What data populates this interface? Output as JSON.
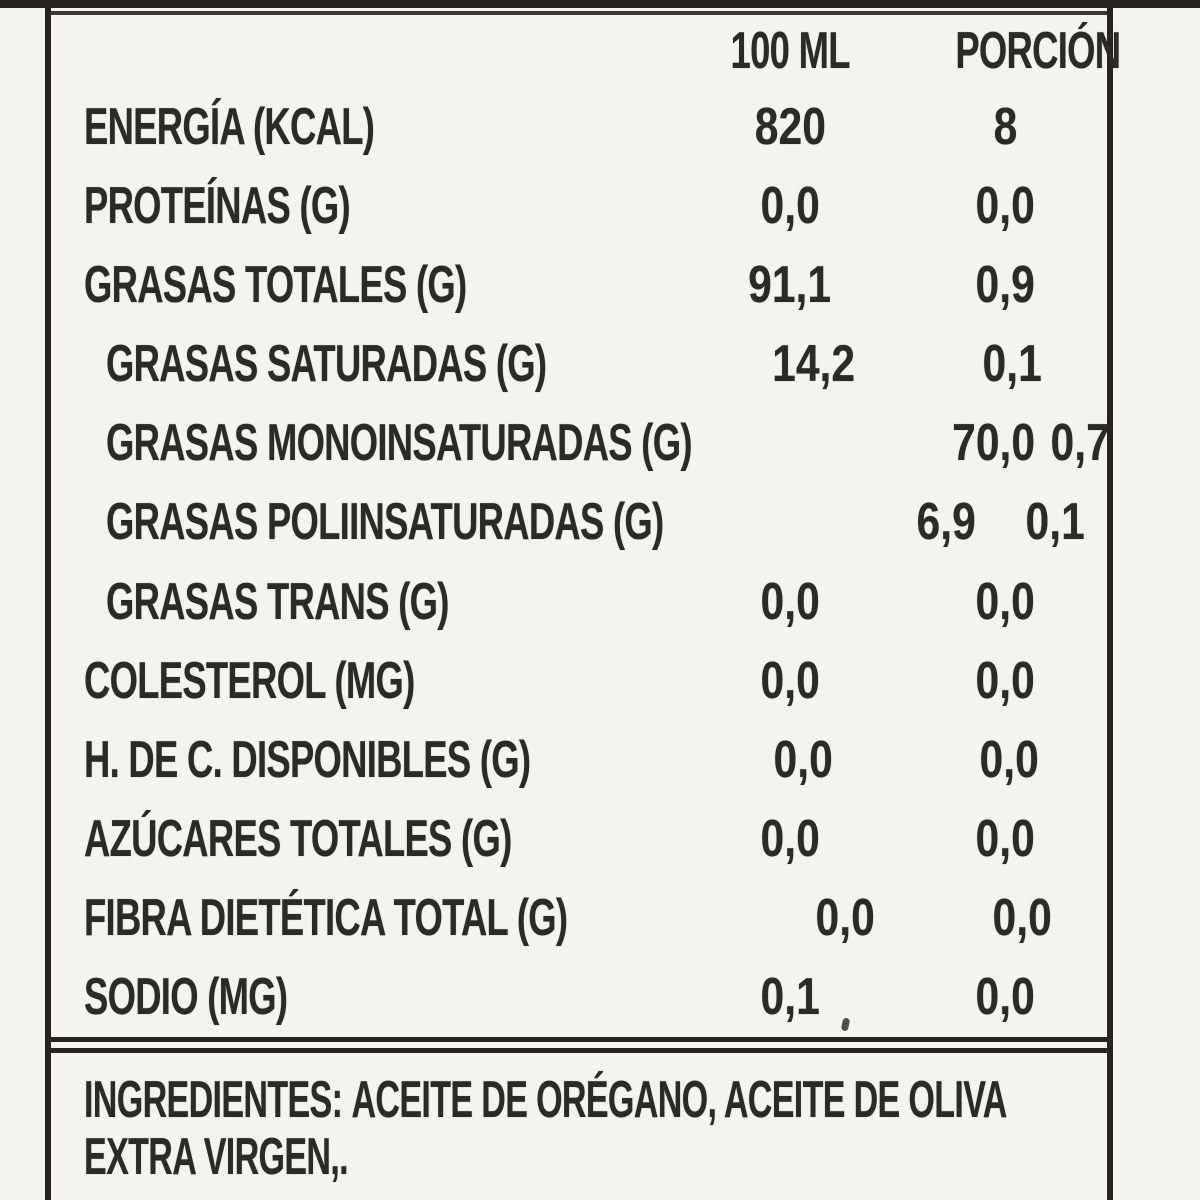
{
  "header": {
    "col_100ml": "100 ML",
    "col_porcion": "PORCIÓN"
  },
  "rows": [
    {
      "label": "ENERGÍA (KCAL)",
      "per_100ml": "820",
      "per_porcion": "8"
    },
    {
      "label": "PROTEÍNAS (G)",
      "per_100ml": "0,0",
      "per_porcion": "0,0"
    },
    {
      "label": "GRASAS TOTALES (G)",
      "per_100ml": "91,1",
      "per_porcion": "0,9"
    },
    {
      "label": "GRASAS SATURADAS (G)",
      "per_100ml": "14,2",
      "per_porcion": "0,1"
    },
    {
      "label": "GRASAS MONOINSATURADAS (G)",
      "per_100ml": "70,0",
      "per_porcion": "0,7"
    },
    {
      "label": "GRASAS POLIINSATURADAS (G)",
      "per_100ml": "6,9",
      "per_porcion": "0,1"
    },
    {
      "label": "GRASAS TRANS (G)",
      "per_100ml": "0,0",
      "per_porcion": "0,0"
    },
    {
      "label": "COLESTEROL (MG)",
      "per_100ml": "0,0",
      "per_porcion": "0,0"
    },
    {
      "label": "H. DE C. DISPONIBLES (G)",
      "per_100ml": "0,0",
      "per_porcion": "0,0"
    },
    {
      "label": "AZÚCARES TOTALES (G)",
      "per_100ml": "0,0",
      "per_porcion": "0,0"
    },
    {
      "label": "FIBRA DIETÉTICA TOTAL (G)",
      "per_100ml": "0,0",
      "per_porcion": "0,0"
    },
    {
      "label": "SODIO (MG)",
      "per_100ml": "0,1",
      "per_porcion": "0,0"
    }
  ],
  "ingredients": {
    "title": "INGREDIENTES:",
    "line1": "ACEITE DE ORÉGANO, ACEITE DE OLIVA",
    "line2": "EXTRA VIRGEN,."
  },
  "colors": {
    "text": "#2c2a26",
    "border": "#262320",
    "background": "#f5f3ef"
  }
}
